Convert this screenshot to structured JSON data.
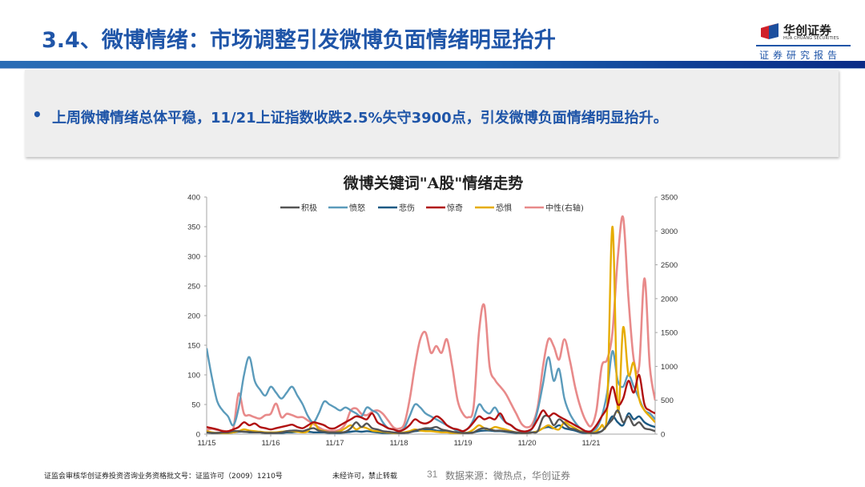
{
  "header": {
    "title": "3.4、微博情绪：市场调整引发微博负面情绪明显抬升",
    "logo_cn": "华创证券",
    "logo_en": "HUA CHUANG SECURITIES",
    "report_label": "证券研究报告",
    "colors": {
      "title": "#1f55a8",
      "band_start": "#2a6cb5",
      "band_end": "#0a2c86"
    }
  },
  "summary": {
    "bullet": "•",
    "text": "上周微博情绪总体平稳，11/21上证指数收跌2.5%失守3900点，引发微博负面情绪明显抬升。"
  },
  "chart_data": {
    "type": "line",
    "title": "微博关键词\"A股\"情绪走势",
    "xlabel": "",
    "ylabel": "",
    "ylim": [
      0,
      400
    ],
    "y2lim": [
      0,
      3500
    ],
    "yticks": [
      0,
      50,
      100,
      150,
      200,
      250,
      300,
      350,
      400
    ],
    "y2ticks": [
      0,
      500,
      1000,
      1500,
      2000,
      2500,
      3000,
      3500
    ],
    "x_tick_labels": [
      "11/15",
      "11/16",
      "11/17",
      "11/18",
      "11/19",
      "11/20",
      "11/21"
    ],
    "x_resolution": "2-hourly samples, 12 per day, 85 points from 11/15 00:00 to 11/22 00:00",
    "grid": false,
    "legend_position": "top",
    "series": [
      {
        "name": "积极",
        "axis": "left",
        "color": "#555555",
        "values": [
          3,
          2,
          2,
          3,
          3,
          5,
          5,
          4,
          4,
          3,
          3,
          2,
          2,
          2,
          3,
          5,
          6,
          6,
          5,
          8,
          10,
          6,
          4,
          3,
          3,
          3,
          4,
          10,
          20,
          12,
          18,
          10,
          8,
          5,
          4,
          3,
          2,
          2,
          3,
          6,
          8,
          10,
          10,
          12,
          8,
          6,
          4,
          3,
          2,
          2,
          3,
          8,
          10,
          8,
          6,
          6,
          5,
          4,
          3,
          2,
          2,
          3,
          5,
          28,
          30,
          15,
          25,
          18,
          10,
          8,
          4,
          3,
          2,
          2,
          5,
          15,
          25,
          40,
          20,
          30,
          15,
          20,
          10,
          8,
          5
        ]
      },
      {
        "name": "愤怒",
        "axis": "left",
        "color": "#5b9bbb",
        "values": [
          145,
          95,
          55,
          40,
          30,
          15,
          45,
          100,
          130,
          90,
          75,
          65,
          80,
          70,
          60,
          70,
          80,
          65,
          50,
          30,
          20,
          35,
          55,
          50,
          45,
          40,
          45,
          40,
          35,
          30,
          45,
          40,
          35,
          20,
          10,
          8,
          5,
          10,
          30,
          50,
          45,
          35,
          30,
          25,
          20,
          15,
          10,
          5,
          5,
          10,
          25,
          50,
          40,
          35,
          45,
          30,
          20,
          15,
          8,
          5,
          5,
          10,
          40,
          85,
          130,
          90,
          110,
          60,
          35,
          20,
          10,
          5,
          5,
          10,
          30,
          70,
          140,
          90,
          80,
          100,
          80,
          60,
          40,
          35,
          25
        ]
      },
      {
        "name": "悲伤",
        "axis": "left",
        "color": "#1c5a84",
        "values": [
          3,
          2,
          2,
          2,
          2,
          3,
          4,
          4,
          3,
          3,
          3,
          2,
          2,
          2,
          2,
          3,
          3,
          4,
          4,
          4,
          3,
          3,
          3,
          2,
          2,
          2,
          3,
          4,
          5,
          4,
          5,
          4,
          3,
          2,
          2,
          2,
          2,
          2,
          3,
          5,
          6,
          8,
          8,
          6,
          5,
          4,
          3,
          2,
          2,
          2,
          3,
          5,
          6,
          6,
          5,
          5,
          4,
          3,
          2,
          2,
          2,
          3,
          5,
          10,
          12,
          10,
          15,
          10,
          8,
          6,
          3,
          2,
          2,
          3,
          5,
          15,
          30,
          20,
          15,
          35,
          25,
          30,
          20,
          15,
          12
        ]
      },
      {
        "name": "惊奇",
        "axis": "left",
        "color": "#b01010",
        "values": [
          12,
          10,
          8,
          5,
          5,
          8,
          12,
          20,
          15,
          18,
          12,
          10,
          8,
          10,
          12,
          14,
          16,
          12,
          10,
          15,
          20,
          18,
          15,
          10,
          10,
          15,
          20,
          25,
          30,
          28,
          25,
          35,
          20,
          15,
          10,
          8,
          5,
          8,
          15,
          25,
          20,
          18,
          22,
          30,
          25,
          15,
          10,
          8,
          5,
          10,
          20,
          30,
          25,
          28,
          25,
          35,
          20,
          15,
          8,
          5,
          5,
          10,
          25,
          40,
          30,
          35,
          30,
          25,
          20,
          15,
          10,
          5,
          5,
          15,
          30,
          45,
          80,
          50,
          60,
          90,
          70,
          100,
          50,
          40,
          35
        ]
      },
      {
        "name": "恐惧",
        "axis": "left",
        "color": "#e6ac00",
        "values": [
          5,
          3,
          2,
          2,
          2,
          3,
          5,
          8,
          6,
          5,
          4,
          3,
          3,
          3,
          4,
          5,
          5,
          4,
          3,
          5,
          20,
          8,
          5,
          3,
          3,
          5,
          10,
          15,
          8,
          12,
          10,
          6,
          5,
          4,
          3,
          2,
          2,
          3,
          5,
          8,
          6,
          5,
          5,
          4,
          3,
          3,
          2,
          2,
          2,
          3,
          8,
          15,
          10,
          8,
          12,
          10,
          8,
          5,
          3,
          2,
          2,
          3,
          5,
          10,
          15,
          10,
          8,
          20,
          15,
          10,
          5,
          3,
          2,
          5,
          15,
          40,
          350,
          40,
          180,
          100,
          120,
          60,
          40,
          30,
          20
        ]
      }
    ],
    "neutral_series": {
      "name": "中性(右轴)",
      "axis": "right",
      "color": "#e88a8a",
      "values": [
        60,
        80,
        60,
        50,
        40,
        80,
        600,
        300,
        280,
        250,
        230,
        280,
        300,
        450,
        250,
        300,
        280,
        250,
        250,
        200,
        150,
        100,
        60,
        50,
        50,
        70,
        150,
        350,
        380,
        300,
        280,
        330,
        350,
        300,
        200,
        100,
        80,
        150,
        500,
        1000,
        1400,
        1500,
        1200,
        1300,
        1200,
        1400,
        1000,
        500,
        300,
        250,
        400,
        1500,
        1900,
        1000,
        800,
        700,
        600,
        450,
        300,
        150,
        100,
        150,
        400,
        1000,
        1400,
        1300,
        1100,
        1400,
        1100,
        700,
        400,
        200,
        120,
        350,
        1000,
        1100,
        1500,
        2600,
        3200,
        2000,
        1100,
        1000,
        2300,
        1000,
        500
      ]
    },
    "legend": [
      "积极",
      "愤怒",
      "悲伤",
      "惊奇",
      "恐惧",
      "中性(右轴)"
    ]
  },
  "footer": {
    "license": "证监会审核华创证券投资咨询业务资格批文号：证监许可（2009）1210号",
    "notice": "未经许可，禁止转载",
    "page_number": "31",
    "source": "数据来源：微热点，华创证券"
  }
}
